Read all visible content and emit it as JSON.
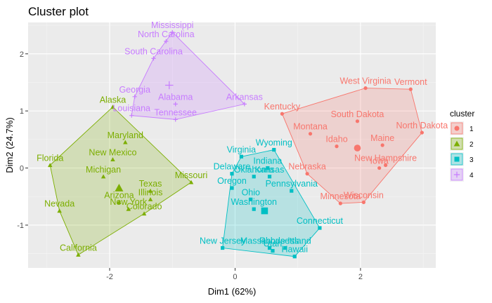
{
  "chart_data": {
    "type": "scatter",
    "title": "Cluster plot",
    "xlabel": "Dim1 (62%)",
    "ylabel": "Dim2 (24.7%)",
    "xlim": [
      -3.3,
      3.2
    ],
    "ylim": [
      -1.75,
      2.55
    ],
    "x_ticks": [
      -2,
      0,
      2
    ],
    "y_ticks": [
      -1,
      0,
      1,
      2
    ],
    "grid": true,
    "legend": {
      "title": "cluster",
      "position": "right",
      "labels": [
        "1",
        "2",
        "3",
        "4"
      ]
    },
    "clusters": [
      {
        "name": "1",
        "color": "#f8766d",
        "marker": "circle",
        "center": [
          1.95,
          0.35
        ],
        "points": [
          {
            "label": "West Virginia",
            "x": 2.08,
            "y": 1.4
          },
          {
            "label": "Vermont",
            "x": 2.8,
            "y": 1.38
          },
          {
            "label": "Kentucky",
            "x": 0.75,
            "y": 0.95
          },
          {
            "label": "South Dakota",
            "x": 1.95,
            "y": 0.82
          },
          {
            "label": "Montana",
            "x": 1.2,
            "y": 0.6
          },
          {
            "label": "North Dakota",
            "x": 2.98,
            "y": 0.62
          },
          {
            "label": "Maine",
            "x": 2.35,
            "y": 0.4
          },
          {
            "label": "Idaho",
            "x": 1.62,
            "y": 0.38
          },
          {
            "label": "New Hampshire",
            "x": 2.4,
            "y": 0.05
          },
          {
            "label": "Iowa",
            "x": 2.3,
            "y": 0.0
          },
          {
            "label": "Nebraska",
            "x": 1.15,
            "y": -0.1
          },
          {
            "label": "Wisconsin",
            "x": 2.05,
            "y": -0.6
          },
          {
            "label": "Minnesota",
            "x": 1.68,
            "y": -0.62
          }
        ]
      },
      {
        "name": "2",
        "color": "#7cae00",
        "marker": "triangle",
        "center": [
          -1.85,
          -0.35
        ],
        "points": [
          {
            "label": "Alaska",
            "x": -1.95,
            "y": 1.07
          },
          {
            "label": "Maryland",
            "x": -1.75,
            "y": 0.45
          },
          {
            "label": "New Mexico",
            "x": -1.95,
            "y": 0.15
          },
          {
            "label": "Florida",
            "x": -2.95,
            "y": 0.05
          },
          {
            "label": "Michigan",
            "x": -2.1,
            "y": -0.15
          },
          {
            "label": "Missouri",
            "x": -0.7,
            "y": -0.25
          },
          {
            "label": "Texas",
            "x": -1.35,
            "y": -0.4
          },
          {
            "label": "Illinois",
            "x": -1.35,
            "y": -0.55
          },
          {
            "label": "Arizona",
            "x": -1.85,
            "y": -0.6
          },
          {
            "label": "New York",
            "x": -1.7,
            "y": -0.72
          },
          {
            "label": "Colorado",
            "x": -1.45,
            "y": -0.8
          },
          {
            "label": "Nevada",
            "x": -2.8,
            "y": -0.75
          },
          {
            "label": "California",
            "x": -2.5,
            "y": -1.52
          }
        ]
      },
      {
        "name": "3",
        "color": "#00bfc4",
        "marker": "square",
        "center": [
          0.47,
          -0.75
        ],
        "points": [
          {
            "label": "Wyoming",
            "x": 0.62,
            "y": 0.32
          },
          {
            "label": "Virginia",
            "x": 0.1,
            "y": 0.2
          },
          {
            "label": "Indiana",
            "x": 0.52,
            "y": 0.0
          },
          {
            "label": "Delaware",
            "x": -0.05,
            "y": -0.1
          },
          {
            "label": "Oklahoma",
            "x": 0.3,
            "y": -0.15
          },
          {
            "label": "Kansas",
            "x": 0.55,
            "y": -0.15
          },
          {
            "label": "Oregon",
            "x": -0.05,
            "y": -0.35
          },
          {
            "label": "Pennsylvania",
            "x": 0.9,
            "y": -0.4
          },
          {
            "label": "Ohio",
            "x": 0.25,
            "y": -0.55
          },
          {
            "label": "Washington",
            "x": 0.3,
            "y": -0.72
          },
          {
            "label": "Connecticut",
            "x": 1.35,
            "y": -1.05
          },
          {
            "label": "New Jersey",
            "x": -0.2,
            "y": -1.4
          },
          {
            "label": "Massachusetts",
            "x": 0.55,
            "y": -1.4
          },
          {
            "label": "Rhode Island",
            "x": 0.8,
            "y": -1.4
          },
          {
            "label": "Utah",
            "x": 0.6,
            "y": -1.45
          },
          {
            "label": "Hawaii",
            "x": 0.95,
            "y": -1.55
          }
        ]
      },
      {
        "name": "4",
        "color": "#c77cff",
        "marker": "cross",
        "center": [
          -1.05,
          1.45
        ],
        "points": [
          {
            "label": "Mississippi",
            "x": -1.0,
            "y": 2.38
          },
          {
            "label": "North Carolina",
            "x": -1.1,
            "y": 2.22
          },
          {
            "label": "South Carolina",
            "x": -1.3,
            "y": 1.92
          },
          {
            "label": "Georgia",
            "x": -1.6,
            "y": 1.25
          },
          {
            "label": "Alabama",
            "x": -0.95,
            "y": 1.12
          },
          {
            "label": "Arkansas",
            "x": 0.15,
            "y": 1.12
          },
          {
            "label": "Louisiana",
            "x": -1.65,
            "y": 0.92
          },
          {
            "label": "Tennessee",
            "x": -0.95,
            "y": 0.85
          }
        ]
      }
    ]
  }
}
